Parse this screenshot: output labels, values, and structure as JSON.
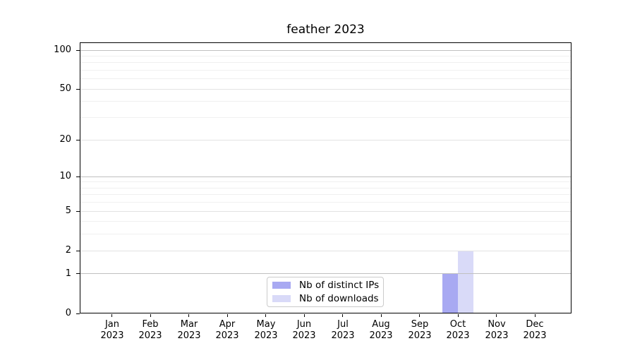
{
  "chart_data": {
    "type": "bar",
    "title": "feather 2023",
    "categories": [
      "Jan",
      "Feb",
      "Mar",
      "Apr",
      "May",
      "Jun",
      "Jul",
      "Aug",
      "Sep",
      "Oct",
      "Nov",
      "Dec"
    ],
    "category_year": "2023",
    "series": [
      {
        "name": "Nb of distinct IPs",
        "color": "#a8a9f2",
        "values": [
          0,
          0,
          0,
          0,
          0,
          0,
          0,
          0,
          0,
          1,
          0,
          0
        ]
      },
      {
        "name": "Nb of downloads",
        "color": "#d9daf8",
        "values": [
          0,
          0,
          0,
          0,
          0,
          0,
          0,
          0,
          0,
          2,
          0,
          0
        ]
      }
    ],
    "y_axis": {
      "scale": "log1p",
      "ticks": [
        0,
        1,
        2,
        5,
        10,
        20,
        50,
        100
      ],
      "decade_ticks": [
        1,
        10,
        100
      ],
      "minor_gridlines": [
        3,
        4,
        6,
        7,
        8,
        9,
        30,
        40,
        60,
        70,
        80,
        90
      ],
      "ylim": [
        0,
        116
      ]
    },
    "legend": {
      "position": "lower center"
    },
    "grid": true,
    "colors": {
      "decade_grid": "#c0c0c0",
      "sub_grid": "#e3e3e3",
      "minor_grid": "#f0f0f0",
      "axis": "#000000",
      "background": "#ffffff"
    }
  }
}
